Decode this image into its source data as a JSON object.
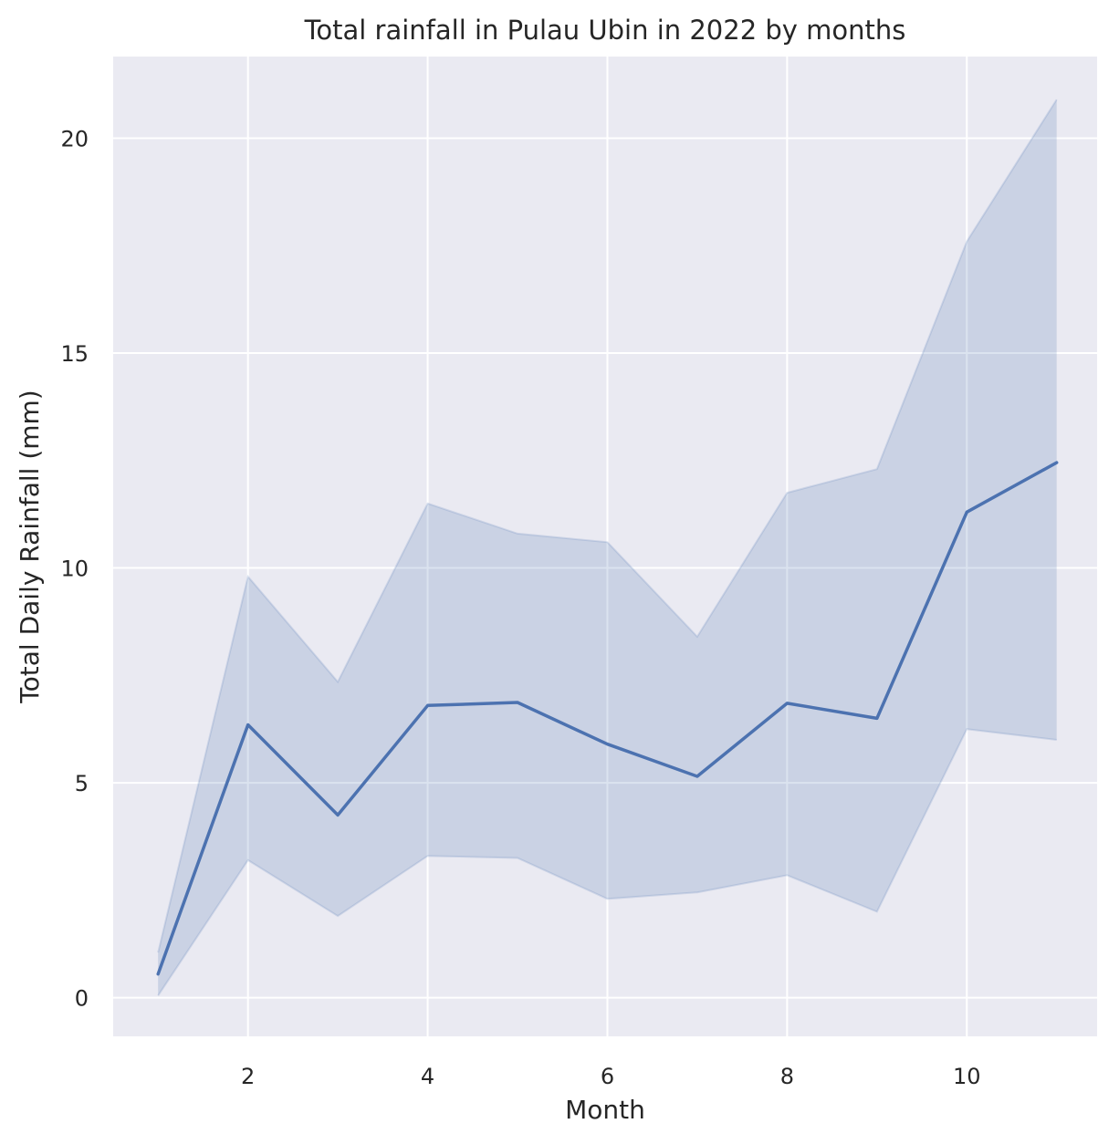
{
  "chart_data": {
    "type": "line",
    "title": "Total rainfall in Pulau Ubin in 2022 by months",
    "xlabel": "Month",
    "ylabel": "Total Daily Rainfall (mm)",
    "x": [
      1,
      2,
      3,
      4,
      5,
      6,
      7,
      8,
      9,
      10,
      11
    ],
    "series": [
      {
        "values": [
          0.55,
          6.35,
          4.25,
          6.8,
          6.87,
          5.9,
          5.15,
          6.85,
          6.5,
          11.3,
          12.45
        ],
        "ci_lower": [
          0.05,
          3.2,
          1.9,
          3.3,
          3.25,
          2.3,
          2.45,
          2.85,
          2.0,
          6.25,
          6.0
        ],
        "ci_upper": [
          1.05,
          9.8,
          7.35,
          11.5,
          10.8,
          10.6,
          8.4,
          11.75,
          12.3,
          17.6,
          20.9
        ]
      }
    ],
    "xticks": [
      2,
      4,
      6,
      8,
      10
    ],
    "yticks": [
      0,
      5,
      10,
      15,
      20
    ],
    "xlim": [
      0.5,
      11.45
    ],
    "ylim": [
      -0.9,
      21.9
    ],
    "grid": true,
    "colors": {
      "background": "#eaeaf2",
      "grid": "#ffffff",
      "line": "#4c72b0",
      "band": "#4c72b0"
    }
  }
}
